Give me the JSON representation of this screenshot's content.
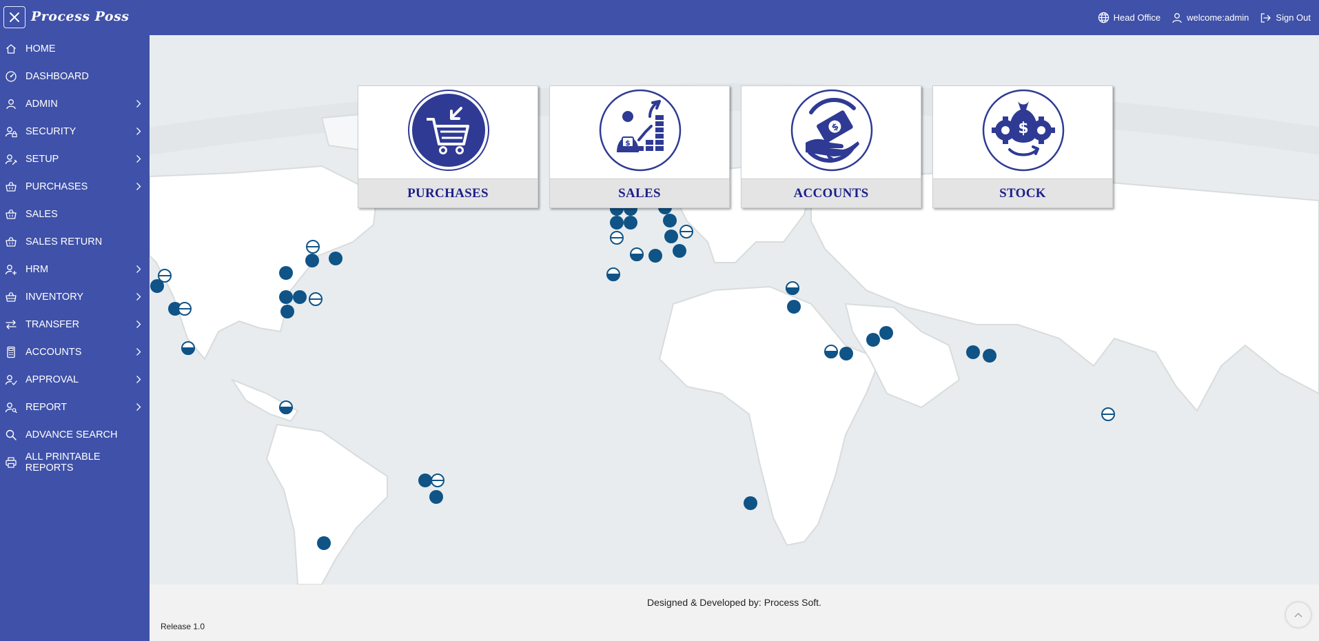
{
  "header": {
    "brand": "Process Poss",
    "branch": "Head Office",
    "user": "welcome:admin",
    "signout": "Sign Out"
  },
  "sidebar": {
    "items": [
      {
        "label": "HOME",
        "icon": "home-icon",
        "expandable": false
      },
      {
        "label": "DASHBOARD",
        "icon": "dashboard-icon",
        "expandable": false
      },
      {
        "label": "ADMIN",
        "icon": "user-icon",
        "expandable": true
      },
      {
        "label": "SECURITY",
        "icon": "user-lock-icon",
        "expandable": true
      },
      {
        "label": "SETUP",
        "icon": "user-settings-icon",
        "expandable": true
      },
      {
        "label": "PURCHASES",
        "icon": "basket-icon",
        "expandable": true
      },
      {
        "label": "SALES",
        "icon": "basket-icon",
        "expandable": false
      },
      {
        "label": "SALES RETURN",
        "icon": "basket-icon",
        "expandable": false
      },
      {
        "label": "HRM",
        "icon": "user-plus-icon",
        "expandable": true
      },
      {
        "label": "INVENTORY",
        "icon": "basket-icon",
        "expandable": true
      },
      {
        "label": "TRANSFER",
        "icon": "transfer-icon",
        "expandable": true
      },
      {
        "label": "ACCOUNTS",
        "icon": "calculator-icon",
        "expandable": true
      },
      {
        "label": "APPROVAL",
        "icon": "user-check-icon",
        "expandable": true
      },
      {
        "label": "REPORT",
        "icon": "user-search-icon",
        "expandable": true
      },
      {
        "label": "ADVANCE SEARCH",
        "icon": "search-icon",
        "expandable": false
      },
      {
        "label": "ALL PRINTABLE REPORTS",
        "icon": "printer-icon",
        "expandable": false
      }
    ]
  },
  "tiles": [
    {
      "label": "PURCHASES",
      "icon": "shopping-cart-icon"
    },
    {
      "label": "SALES",
      "icon": "salesman-chart-icon"
    },
    {
      "label": "ACCOUNTS",
      "icon": "money-hand-icon"
    },
    {
      "label": "STOCK",
      "icon": "money-bag-gears-icon"
    }
  ],
  "footer": {
    "credit": "Designed & Developed by: Process Soft.",
    "release": "Release 1.0"
  },
  "colors": {
    "primary": "#3f51a8",
    "tile_text": "#1c1f8a",
    "map_marker": "#0f5387",
    "map_land": "#ffffff",
    "map_water": "#e9edf0"
  }
}
